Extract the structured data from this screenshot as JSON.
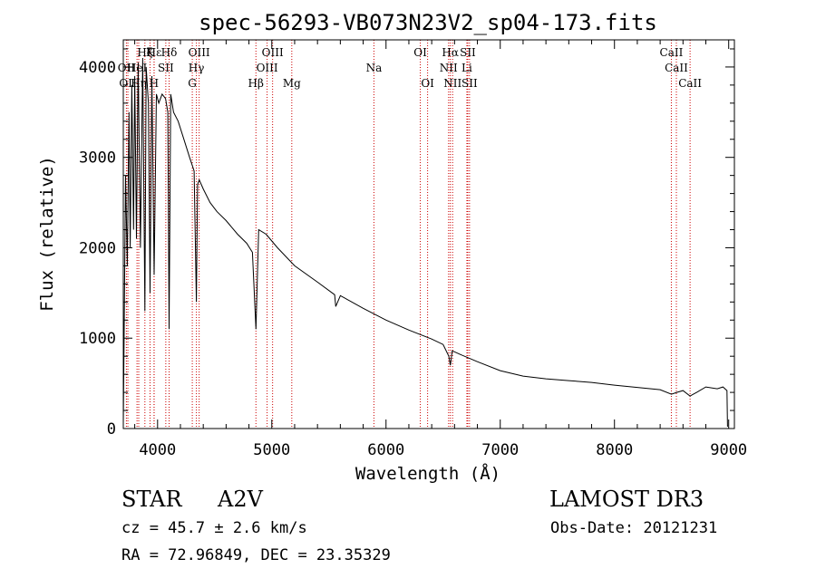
{
  "chart_data": {
    "type": "line",
    "title": "spec-56293-VB073N23V2_sp04-173.fits",
    "xlabel": "Wavelength (Å)",
    "ylabel": "Flux (relative)",
    "xlim": [
      3700,
      9050
    ],
    "ylim": [
      0,
      4300
    ],
    "xticks": [
      4000,
      5000,
      6000,
      7000,
      8000,
      9000
    ],
    "yticks": [
      0,
      1000,
      2000,
      3000,
      4000
    ],
    "x_tick_labels": [
      "4000",
      "5000",
      "6000",
      "7000",
      "8000",
      "9000"
    ],
    "y_tick_labels": [
      "0",
      "1000",
      "2000",
      "3000",
      "4000"
    ],
    "series": [
      {
        "name": "spectrum",
        "x": [
          3700,
          3720,
          3735,
          3750,
          3760,
          3775,
          3790,
          3800,
          3815,
          3830,
          3850,
          3870,
          3889,
          3900,
          3920,
          3934,
          3950,
          3970,
          3990,
          4010,
          4040,
          4070,
          4090,
          4101,
          4115,
          4140,
          4180,
          4230,
          4280,
          4320,
          4340,
          4350,
          4365,
          4400,
          4460,
          4520,
          4600,
          4700,
          4780,
          4830,
          4861,
          4885,
          4950,
          5050,
          5200,
          5400,
          5550,
          5560,
          5600,
          5800,
          6000,
          6200,
          6400,
          6500,
          6550,
          6563,
          6580,
          6650,
          6800,
          7000,
          7200,
          7400,
          7600,
          7800,
          8000,
          8200,
          8400,
          8498,
          8545,
          8600,
          8662,
          8720,
          8800,
          8900,
          8950,
          8985,
          8990
        ],
        "y": [
          50,
          2800,
          1800,
          3500,
          2000,
          3800,
          2200,
          3900,
          2100,
          4050,
          2000,
          4100,
          1300,
          4000,
          3600,
          1500,
          3900,
          1700,
          3700,
          3600,
          3700,
          3650,
          3500,
          1100,
          3700,
          3500,
          3400,
          3200,
          3000,
          2850,
          1400,
          2700,
          2750,
          2650,
          2500,
          2400,
          2300,
          2150,
          2050,
          1950,
          1100,
          2200,
          2150,
          2000,
          1800,
          1620,
          1480,
          1350,
          1470,
          1330,
          1200,
          1090,
          990,
          930,
          800,
          700,
          860,
          820,
          740,
          640,
          580,
          550,
          530,
          510,
          480,
          455,
          430,
          380,
          400,
          420,
          360,
          400,
          460,
          440,
          460,
          420,
          20
        ]
      }
    ],
    "lines": [
      {
        "label": "Hζ",
        "x": 3889,
        "row": 0
      },
      {
        "label": "Hε",
        "x": 3970,
        "row": 0
      },
      {
        "label": "K",
        "x": 3934,
        "row": 0
      },
      {
        "label": "Hδ",
        "x": 4101,
        "row": 0
      },
      {
        "label": "OII",
        "x": 3727,
        "row": 1
      },
      {
        "label": "HeI",
        "x": 3820,
        "row": 1
      },
      {
        "label": "SII",
        "x": 4072,
        "row": 1
      },
      {
        "label": "OIII",
        "x": 4364,
        "row": 0
      },
      {
        "label": "Hγ",
        "x": 4340,
        "row": 1
      },
      {
        "label": "G",
        "x": 4304,
        "row": 2
      },
      {
        "label": "OII",
        "x": 3740,
        "row": 2
      },
      {
        "label": "Hη",
        "x": 3835,
        "row": 2
      },
      {
        "label": "H",
        "x": 3969,
        "row": 2
      },
      {
        "label": "Hβ",
        "x": 4861,
        "row": 2
      },
      {
        "label": "OIII",
        "x": 5007,
        "row": 0
      },
      {
        "label": "OIII",
        "x": 4959,
        "row": 1
      },
      {
        "label": "Mg",
        "x": 5175,
        "row": 2
      },
      {
        "label": "Na",
        "x": 5894,
        "row": 1
      },
      {
        "label": "OI",
        "x": 6300,
        "row": 0
      },
      {
        "label": "OI",
        "x": 6364,
        "row": 2
      },
      {
        "label": "Hα",
        "x": 6563,
        "row": 0
      },
      {
        "label": "SII",
        "x": 6716,
        "row": 0
      },
      {
        "label": "NII",
        "x": 6548,
        "row": 1
      },
      {
        "label": "Li",
        "x": 6708,
        "row": 1
      },
      {
        "label": "NII",
        "x": 6583,
        "row": 2
      },
      {
        "label": "SII",
        "x": 6731,
        "row": 2
      },
      {
        "label": "CaII",
        "x": 8498,
        "row": 0
      },
      {
        "label": "CaII",
        "x": 8542,
        "row": 1
      },
      {
        "label": "CaII",
        "x": 8662,
        "row": 2
      }
    ]
  },
  "info": {
    "object_type": "STAR",
    "subclass": "A2V",
    "survey": "LAMOST DR3",
    "redshift": "cz = 45.7 ± 2.6 km/s",
    "obs_date": "Obs-Date: 20121231",
    "coords": "RA =  72.96849, DEC =  23.35329"
  }
}
